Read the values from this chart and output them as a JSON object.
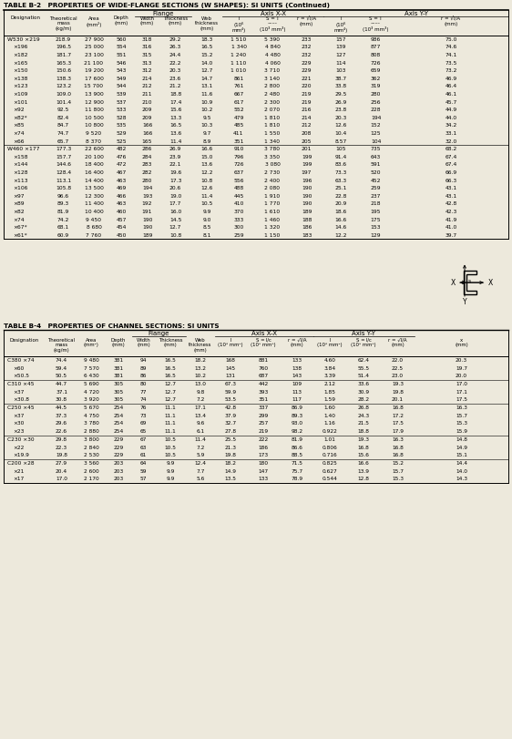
{
  "title_b2": "TABLE B-2   PROPERTIES OF WIDE-FLANGE SECTIONS (W SHAPES): SI UNITS (Continued)",
  "title_b4": "TABLE B-4   PROPERTIES OF CHANNEL SECTIONS: SI UNITS",
  "bg_color": "#ede9dc",
  "data_b2": [
    [
      "W530 ×219",
      "218.9",
      "27 900",
      "560",
      "318",
      "29.2",
      "18.3",
      "1 510",
      "5 390",
      "233",
      "157",
      "986",
      "75.0"
    ],
    [
      "×196",
      "196.5",
      "25 000",
      "554",
      "316",
      "26.3",
      "16.5",
      "1 340",
      "4 840",
      "232",
      "139",
      "877",
      "74.6"
    ],
    [
      "×182",
      "181.7",
      "23 100",
      "551",
      "315",
      "24.4",
      "15.2",
      "1 240",
      "4 480",
      "232",
      "127",
      "808",
      "74.1"
    ],
    [
      "×165",
      "165.3",
      "21 100",
      "546",
      "313",
      "22.2",
      "14.0",
      "1 110",
      "4 060",
      "229",
      "114",
      "726",
      "73.5"
    ],
    [
      "×150",
      "150.6",
      "19 200",
      "543",
      "312",
      "20.3",
      "12.7",
      "1 010",
      "3 710",
      "229",
      "103",
      "659",
      "73.2"
    ],
    [
      "×138",
      "138.3",
      "17 600",
      "549",
      "214",
      "23.6",
      "14.7",
      "861",
      "3 140",
      "221",
      "38.7",
      "362",
      "46.9"
    ],
    [
      "×123",
      "123.2",
      "15 700",
      "544",
      "212",
      "21.2",
      "13.1",
      "761",
      "2 800",
      "220",
      "33.8",
      "319",
      "46.4"
    ],
    [
      "×109",
      "109.0",
      "13 900",
      "539",
      "211",
      "18.8",
      "11.6",
      "667",
      "2 480",
      "219",
      "29.5",
      "280",
      "46.1"
    ],
    [
      "×101",
      "101.4",
      "12 900",
      "537",
      "210",
      "17.4",
      "10.9",
      "617",
      "2 300",
      "219",
      "26.9",
      "256",
      "45.7"
    ],
    [
      "×92",
      "92.5",
      "11 800",
      "533",
      "209",
      "15.6",
      "10.2",
      "552",
      "2 070",
      "216",
      "23.8",
      "228",
      "44.9"
    ],
    [
      "×82*",
      "82.4",
      "10 500",
      "528",
      "209",
      "13.3",
      "9.5",
      "479",
      "1 810",
      "214",
      "20.3",
      "194",
      "44.0"
    ],
    [
      "×85",
      "84.7",
      "10 800",
      "535",
      "166",
      "16.5",
      "10.3",
      "485",
      "1 810",
      "212",
      "12.6",
      "152",
      "34.2"
    ],
    [
      "×74",
      "74.7",
      "9 520",
      "529",
      "166",
      "13.6",
      "9.7",
      "411",
      "1 550",
      "208",
      "10.4",
      "125",
      "33.1"
    ],
    [
      "×66",
      "65.7",
      "8 370",
      "525",
      "165",
      "11.4",
      "8.9",
      "351",
      "1 340",
      "205",
      "8.57",
      "104",
      "32.0"
    ],
    [
      "W460 ×177",
      "177.3",
      "22 600",
      "482",
      "286",
      "26.9",
      "16.6",
      "910",
      "3 780",
      "201",
      "105",
      "735",
      "68.2"
    ],
    [
      "×158",
      "157.7",
      "20 100",
      "476",
      "284",
      "23.9",
      "15.0",
      "796",
      "3 350",
      "199",
      "91.4",
      "643",
      "67.4"
    ],
    [
      "×144",
      "144.6",
      "18 400",
      "472",
      "283",
      "22.1",
      "13.6",
      "726",
      "3 080",
      "199",
      "83.6",
      "591",
      "67.4"
    ],
    [
      "×128",
      "128.4",
      "16 400",
      "467",
      "282",
      "19.6",
      "12.2",
      "637",
      "2 730",
      "197",
      "73.3",
      "520",
      "66.9"
    ],
    [
      "×113",
      "113.1",
      "14 400",
      "463",
      "280",
      "17.3",
      "10.8",
      "556",
      "2 400",
      "196",
      "63.3",
      "452",
      "66.3"
    ],
    [
      "×106",
      "105.8",
      "13 500",
      "469",
      "194",
      "20.6",
      "12.6",
      "488",
      "2 080",
      "190",
      "25.1",
      "259",
      "43.1"
    ],
    [
      "×97",
      "96.6",
      "12 300",
      "466",
      "193",
      "19.0",
      "11.4",
      "445",
      "1 910",
      "190",
      "22.8",
      "237",
      "43.1"
    ],
    [
      "×89",
      "89.3",
      "11 400",
      "463",
      "192",
      "17.7",
      "10.5",
      "410",
      "1 770",
      "190",
      "20.9",
      "218",
      "42.8"
    ],
    [
      "×82",
      "81.9",
      "10 400",
      "460",
      "191",
      "16.0",
      "9.9",
      "370",
      "1 610",
      "189",
      "18.6",
      "195",
      "42.3"
    ],
    [
      "×74",
      "74.2",
      "9 450",
      "457",
      "190",
      "14.5",
      "9.0",
      "333",
      "1 460",
      "188",
      "16.6",
      "175",
      "41.9"
    ],
    [
      "×67*",
      "68.1",
      "8 680",
      "454",
      "190",
      "12.7",
      "8.5",
      "300",
      "1 320",
      "186",
      "14.6",
      "153",
      "41.0"
    ],
    [
      "×61*",
      "60.9",
      "7 760",
      "450",
      "189",
      "10.8",
      "8.1",
      "259",
      "1 150",
      "183",
      "12.2",
      "129",
      "39.7"
    ]
  ],
  "data_b4": [
    [
      "C380 ×74",
      "74.4",
      "9 480",
      "381",
      "94",
      "16.5",
      "18.2",
      "168",
      "881",
      "133",
      "4.60",
      "62.4",
      "22.0",
      "20.3"
    ],
    [
      "×60",
      "59.4",
      "7 570",
      "381",
      "89",
      "16.5",
      "13.2",
      "145",
      "760",
      "138",
      "3.84",
      "55.5",
      "22.5",
      "19.7"
    ],
    [
      "×50.5",
      "50.5",
      "6 430",
      "381",
      "86",
      "16.5",
      "10.2",
      "131",
      "687",
      "143",
      "3.39",
      "51.4",
      "23.0",
      "20.0"
    ],
    [
      "C310 ×45",
      "44.7",
      "5 690",
      "305",
      "80",
      "12.7",
      "13.0",
      "67.3",
      "442",
      "109",
      "2.12",
      "33.6",
      "19.3",
      "17.0"
    ],
    [
      "×37",
      "37.1",
      "4 720",
      "305",
      "77",
      "12.7",
      "9.8",
      "59.9",
      "393",
      "113",
      "1.85",
      "30.9",
      "19.8",
      "17.1"
    ],
    [
      "×30.8",
      "30.8",
      "3 920",
      "305",
      "74",
      "12.7",
      "7.2",
      "53.5",
      "351",
      "117",
      "1.59",
      "28.2",
      "20.1",
      "17.5"
    ],
    [
      "C250 ×45",
      "44.5",
      "5 670",
      "254",
      "76",
      "11.1",
      "17.1",
      "42.8",
      "337",
      "86.9",
      "1.60",
      "26.8",
      "16.8",
      "16.3"
    ],
    [
      "×37",
      "37.3",
      "4 750",
      "254",
      "73",
      "11.1",
      "13.4",
      "37.9",
      "299",
      "89.3",
      "1.40",
      "24.3",
      "17.2",
      "15.7"
    ],
    [
      "×30",
      "29.6",
      "3 780",
      "254",
      "69",
      "11.1",
      "9.6",
      "32.7",
      "257",
      "93.0",
      "1.16",
      "21.5",
      "17.5",
      "15.3"
    ],
    [
      "×23",
      "22.6",
      "2 880",
      "254",
      "65",
      "11.1",
      "6.1",
      "27.8",
      "219",
      "98.2",
      "0.922",
      "18.8",
      "17.9",
      "15.9"
    ],
    [
      "C230 ×30",
      "29.8",
      "3 800",
      "229",
      "67",
      "10.5",
      "11.4",
      "25.5",
      "222",
      "81.9",
      "1.01",
      "19.3",
      "16.3",
      "14.8"
    ],
    [
      "×22",
      "22.3",
      "2 840",
      "229",
      "63",
      "10.5",
      "7.2",
      "21.3",
      "186",
      "86.6",
      "0.806",
      "16.8",
      "16.8",
      "14.9"
    ],
    [
      "×19.9",
      "19.8",
      "2 530",
      "229",
      "61",
      "10.5",
      "5.9",
      "19.8",
      "173",
      "88.5",
      "0.716",
      "15.6",
      "16.8",
      "15.1"
    ],
    [
      "C200 ×28",
      "27.9",
      "3 560",
      "203",
      "64",
      "9.9",
      "12.4",
      "18.2",
      "180",
      "71.5",
      "0.825",
      "16.6",
      "15.2",
      "14.4"
    ],
    [
      "×21",
      "20.4",
      "2 600",
      "203",
      "59",
      "9.9",
      "7.7",
      "14.9",
      "147",
      "75.7",
      "0.627",
      "13.9",
      "15.7",
      "14.0"
    ],
    [
      "×17",
      "17.0",
      "2 170",
      "203",
      "57",
      "9.9",
      "5.6",
      "13.5",
      "133",
      "78.9",
      "0.544",
      "12.8",
      "15.3",
      "14.3"
    ]
  ]
}
